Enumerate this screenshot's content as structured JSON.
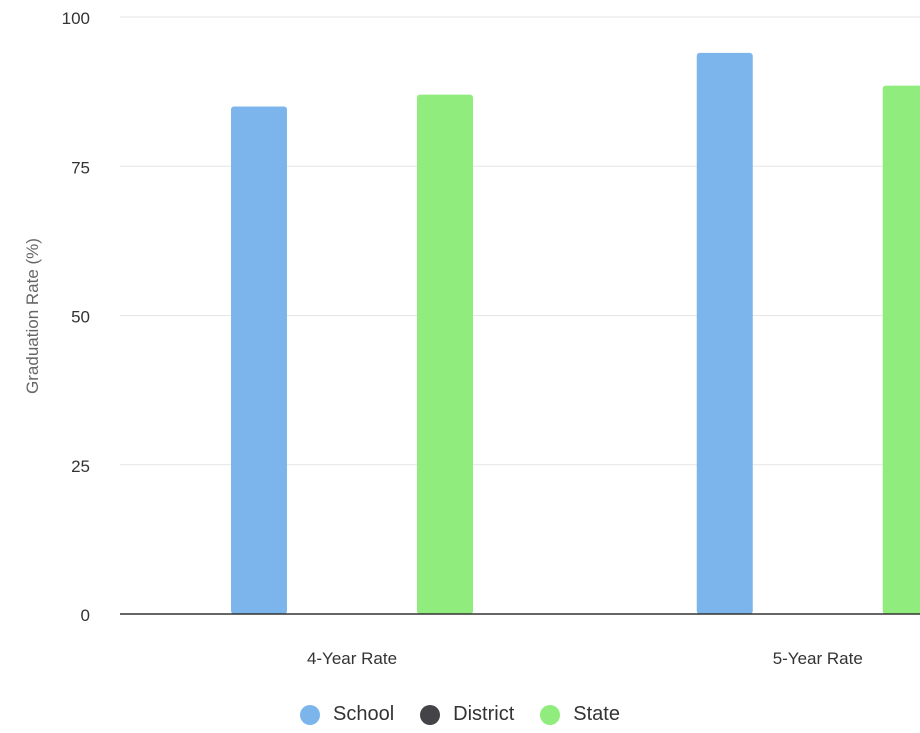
{
  "chart_data": {
    "type": "bar",
    "title": "",
    "xlabel": "",
    "ylabel": "Graduation Rate (%)",
    "ylim": [
      0,
      100
    ],
    "yticks": [
      "0",
      "25",
      "50",
      "75",
      "100"
    ],
    "grid": true,
    "legend_position": "bottom",
    "categories": [
      "4-Year Rate",
      "5-Year Rate"
    ],
    "series": [
      {
        "name": "School",
        "color": "#7cb5ec",
        "values": [
          85,
          94
        ]
      },
      {
        "name": "District",
        "color": "#434348",
        "values": [
          0,
          0
        ]
      },
      {
        "name": "State",
        "color": "#90ed7d",
        "values": [
          87,
          88.5
        ]
      }
    ]
  }
}
